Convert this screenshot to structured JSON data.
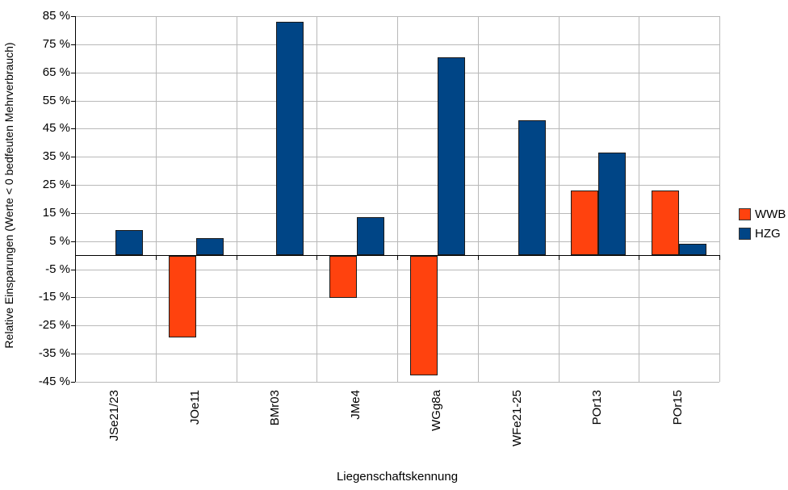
{
  "chart_data": {
    "type": "bar",
    "categories": [
      "JSe21/23",
      "JOe11",
      "BMr03",
      "JMe4",
      "WGg8a",
      "WFe21-25",
      "POr13",
      "POr15"
    ],
    "series": [
      {
        "name": "WWB",
        "color": "#FF420E",
        "values": [
          null,
          -29,
          null,
          -15,
          -42.5,
          null,
          23,
          23
        ]
      },
      {
        "name": "HZG",
        "color": "#004586",
        "values": [
          9,
          6,
          83,
          13.5,
          70.5,
          48,
          36.5,
          4
        ]
      }
    ],
    "title": "",
    "xlabel": "Liegenschaftskennung",
    "ylabel": "Relative Einsparungen (Werte < 0 bedfeuten Mehrverbrauch)",
    "ylim": [
      -45,
      85
    ],
    "ytick_step": 10,
    "ytick_suffix": " %",
    "grid": true,
    "legend_position": "right",
    "colors": {
      "grid": "#b9b9b9",
      "axis": "#000000",
      "bar_border": "#1a1a1a"
    }
  }
}
